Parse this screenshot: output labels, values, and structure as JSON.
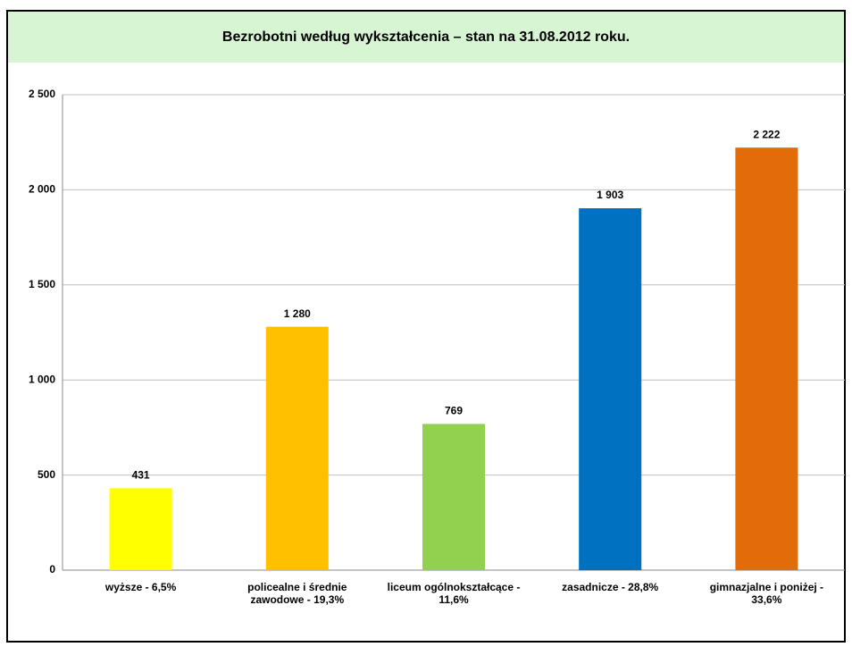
{
  "chart_data": {
    "type": "bar",
    "title": "Bezrobotni według wykształcenia – stan na 31.08.2012 roku.",
    "categories": [
      "wyższe - 6,5%",
      "policealne i średnie zawodowe - 19,3%",
      "liceum ogólnokształcące - 11,6%",
      "zasadnicze - 28,8%",
      "gimnazjalne i poniżej - 33,6%"
    ],
    "values": [
      431,
      1280,
      769,
      1903,
      2222
    ],
    "value_labels": [
      "431",
      "1 280",
      "769",
      "1 903",
      "2 222"
    ],
    "colors": [
      "#ffff00",
      "#ffc000",
      "#92d050",
      "#0070c0",
      "#e36c0a"
    ],
    "ylim": [
      0,
      2500
    ],
    "yticks": [
      0,
      500,
      {
        "value": 1000,
        "label": "1 000"
      },
      {
        "value": 1500,
        "label": "1 500"
      },
      {
        "value": 2000,
        "label": "2 000"
      },
      {
        "value": 2500,
        "label": "2 500"
      }
    ],
    "grid": true
  }
}
